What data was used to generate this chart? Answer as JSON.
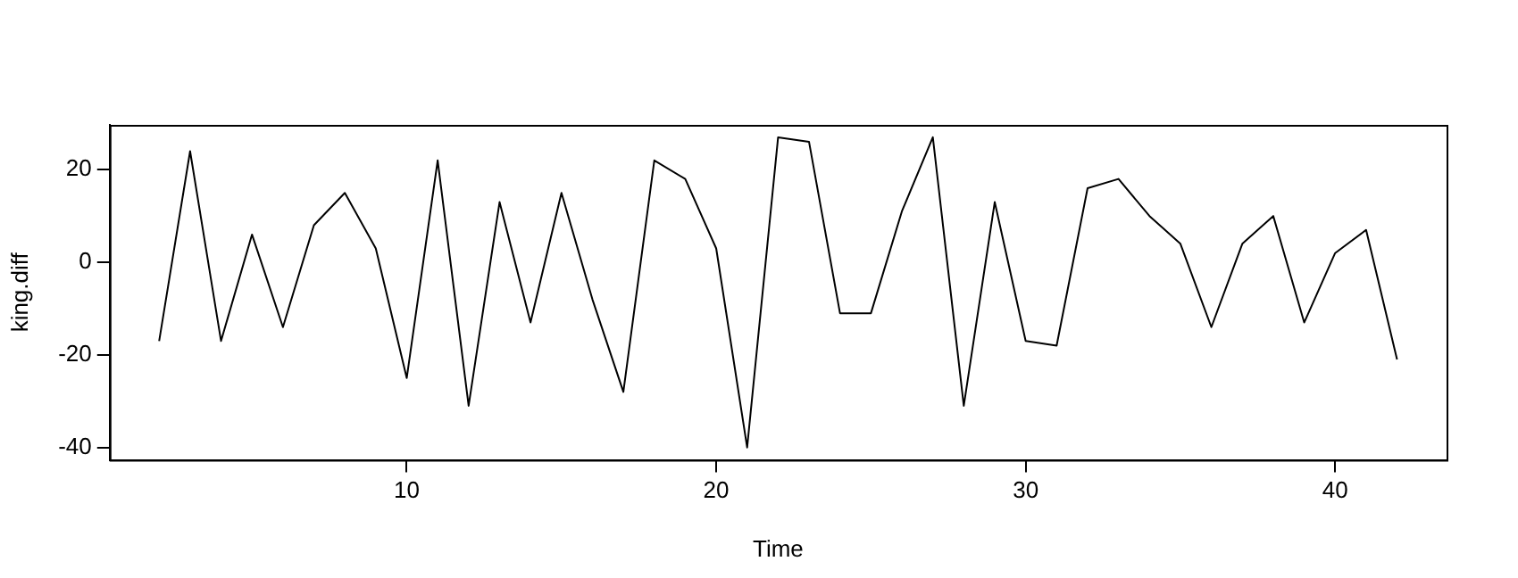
{
  "chart_data": {
    "type": "line",
    "xlabel": "Time",
    "ylabel": "king.diff",
    "x": [
      2,
      3,
      4,
      5,
      6,
      7,
      8,
      9,
      10,
      11,
      12,
      13,
      14,
      15,
      16,
      17,
      18,
      19,
      20,
      21,
      22,
      23,
      24,
      25,
      26,
      27,
      28,
      29,
      30,
      31,
      32,
      33,
      34,
      35,
      36,
      37,
      38,
      39,
      40,
      41,
      42
    ],
    "series": [
      {
        "color": "#000000",
        "values": [
          -17,
          24,
          -17,
          6,
          -14,
          8,
          15,
          3,
          -25,
          22,
          -31,
          13,
          -13,
          15,
          -8,
          -28,
          22,
          18,
          3,
          -40,
          27,
          26,
          -11,
          -11,
          11,
          27,
          -31,
          13,
          -17,
          -18,
          16,
          18,
          10,
          4,
          -14,
          4,
          10,
          -13,
          2,
          7,
          -21
        ]
      }
    ],
    "xlim": [
      0.4,
      43.6
    ],
    "ylim": [
      -42.68,
      29.68
    ],
    "xticks": [
      10,
      20,
      30,
      40
    ],
    "yticks": [
      -40,
      -20,
      0,
      20
    ],
    "marker": "none",
    "line_style": "solid",
    "legend": false
  }
}
